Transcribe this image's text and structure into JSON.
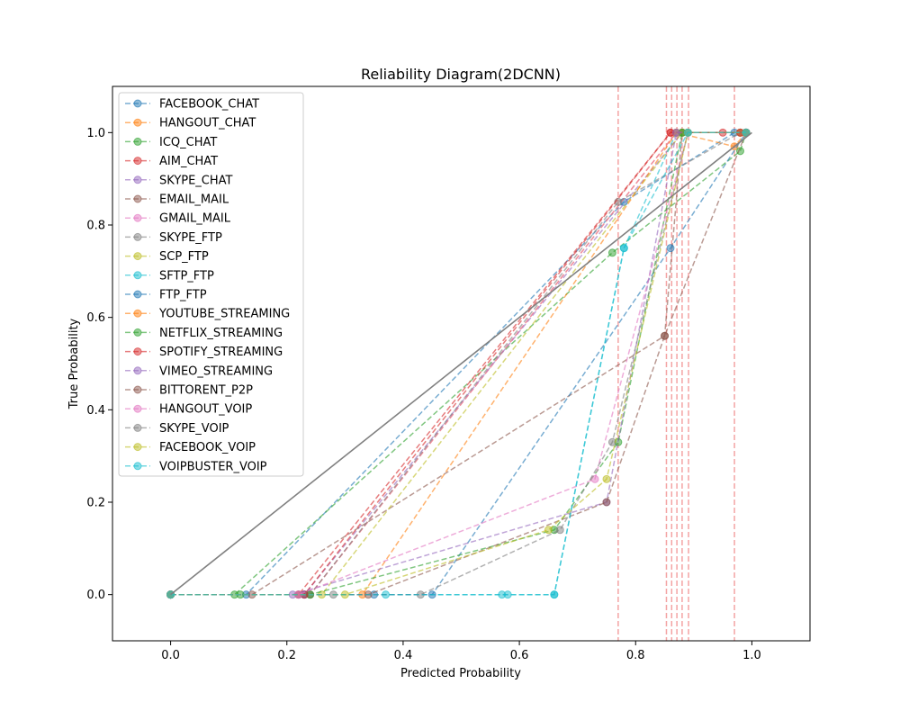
{
  "chart_data": {
    "type": "line",
    "title": "Reliability Diagram(2DCNN)",
    "xlabel": "Predicted Probability",
    "ylabel": "True Probability",
    "xlim": [
      -0.1,
      1.1
    ],
    "ylim": [
      -0.1,
      1.1
    ],
    "xticks": [
      "0.0",
      "0.2",
      "0.4",
      "0.6",
      "0.8",
      "1.0"
    ],
    "yticks": [
      "0.0",
      "0.2",
      "0.4",
      "0.6",
      "0.8",
      "1.0"
    ],
    "grid": false,
    "legend_position": "upper-left",
    "reference_line": {
      "x": [
        0,
        1
      ],
      "y": [
        0,
        1
      ],
      "color": "#808080"
    },
    "threshold_lines": {
      "color": "#f4a3a3",
      "x": [
        0.77,
        0.853,
        0.862,
        0.871,
        0.88,
        0.891,
        0.97
      ]
    },
    "series": [
      {
        "name": "FACEBOOK_CHAT",
        "color": "#1f77b4",
        "points": [
          [
            0.0,
            0.0
          ],
          [
            0.13,
            0.0
          ],
          [
            0.78,
            0.85
          ],
          [
            0.97,
            1.0
          ],
          [
            0.99,
            1.0
          ]
        ]
      },
      {
        "name": "HANGOUT_CHAT",
        "color": "#ff7f0e",
        "points": [
          [
            0.0,
            0.0
          ],
          [
            0.24,
            0.0
          ],
          [
            0.87,
            1.0
          ],
          [
            0.97,
            0.97
          ],
          [
            0.99,
            1.0
          ]
        ]
      },
      {
        "name": "ICQ_CHAT",
        "color": "#2ca02c",
        "points": [
          [
            0.0,
            0.0
          ],
          [
            0.11,
            0.0
          ],
          [
            0.76,
            0.74
          ],
          [
            0.98,
            0.96
          ],
          [
            0.99,
            1.0
          ]
        ]
      },
      {
        "name": "AIM_CHAT",
        "color": "#d62728",
        "points": [
          [
            0.0,
            0.0
          ],
          [
            0.22,
            0.0
          ],
          [
            0.86,
            1.0
          ],
          [
            0.95,
            1.0
          ],
          [
            0.99,
            1.0
          ]
        ]
      },
      {
        "name": "SKYPE_CHAT",
        "color": "#9467bd",
        "points": [
          [
            0.0,
            0.0
          ],
          [
            0.23,
            0.0
          ],
          [
            0.88,
            1.0
          ],
          [
            0.98,
            1.0
          ],
          [
            0.99,
            1.0
          ]
        ]
      },
      {
        "name": "EMAIL_MAIL",
        "color": "#8c564b",
        "points": [
          [
            0.0,
            0.0
          ],
          [
            0.14,
            0.0
          ],
          [
            0.85,
            0.56
          ],
          [
            0.88,
            1.0
          ],
          [
            0.99,
            1.0
          ]
        ]
      },
      {
        "name": "GMAIL_MAIL",
        "color": "#e377c2",
        "points": [
          [
            0.0,
            0.0
          ],
          [
            0.24,
            0.0
          ],
          [
            0.87,
            1.0
          ],
          [
            0.98,
            1.0
          ],
          [
            0.99,
            1.0
          ]
        ]
      },
      {
        "name": "SKYPE_FTP",
        "color": "#7f7f7f",
        "points": [
          [
            0.0,
            0.0
          ],
          [
            0.24,
            0.0
          ],
          [
            0.77,
            0.85
          ],
          [
            0.98,
            1.0
          ],
          [
            0.99,
            1.0
          ]
        ]
      },
      {
        "name": "SCP_FTP",
        "color": "#bcbd22",
        "points": [
          [
            0.0,
            0.0
          ],
          [
            0.26,
            0.0
          ],
          [
            0.88,
            1.0
          ],
          [
            0.98,
            1.0
          ],
          [
            0.99,
            1.0
          ]
        ]
      },
      {
        "name": "SFTP_FTP",
        "color": "#17becf",
        "points": [
          [
            0.0,
            0.0
          ],
          [
            0.37,
            0.0
          ],
          [
            0.57,
            0.0
          ],
          [
            0.66,
            0.0
          ],
          [
            0.78,
            0.75
          ],
          [
            0.87,
            1.0
          ],
          [
            0.99,
            1.0
          ]
        ]
      },
      {
        "name": "FTP_FTP",
        "color": "#1f77b4",
        "points": [
          [
            0.0,
            0.0
          ],
          [
            0.23,
            0.0
          ],
          [
            0.35,
            0.0
          ],
          [
            0.45,
            0.0
          ],
          [
            0.86,
            0.75
          ],
          [
            0.99,
            1.0
          ]
        ]
      },
      {
        "name": "YOUTUBE_STREAMING",
        "color": "#ff7f0e",
        "points": [
          [
            0.0,
            0.0
          ],
          [
            0.33,
            0.0
          ],
          [
            0.87,
            1.0
          ],
          [
            0.99,
            1.0
          ]
        ]
      },
      {
        "name": "NETFLIX_STREAMING",
        "color": "#2ca02c",
        "points": [
          [
            0.0,
            0.0
          ],
          [
            0.12,
            0.0
          ],
          [
            0.24,
            0.0
          ],
          [
            0.66,
            0.14
          ],
          [
            0.77,
            0.33
          ],
          [
            0.88,
            1.0
          ],
          [
            0.99,
            1.0
          ]
        ]
      },
      {
        "name": "SPOTIFY_STREAMING",
        "color": "#d62728",
        "points": [
          [
            0.0,
            0.0
          ],
          [
            0.23,
            0.0
          ],
          [
            0.86,
            1.0
          ],
          [
            0.98,
            1.0
          ],
          [
            0.99,
            1.0
          ]
        ]
      },
      {
        "name": "VIMEO_STREAMING",
        "color": "#9467bd",
        "points": [
          [
            0.0,
            0.0
          ],
          [
            0.21,
            0.0
          ],
          [
            0.75,
            0.2
          ],
          [
            0.87,
            1.0
          ],
          [
            0.99,
            1.0
          ]
        ]
      },
      {
        "name": "BITTORENT_P2P",
        "color": "#8c564b",
        "points": [
          [
            0.0,
            0.0
          ],
          [
            0.22,
            0.0
          ],
          [
            0.34,
            0.0
          ],
          [
            0.75,
            0.2
          ],
          [
            0.85,
            0.56
          ],
          [
            0.99,
            1.0
          ]
        ]
      },
      {
        "name": "HANGOUT_VOIP",
        "color": "#e377c2",
        "points": [
          [
            0.0,
            0.0
          ],
          [
            0.22,
            0.0
          ],
          [
            0.73,
            0.25
          ],
          [
            0.89,
            1.0
          ],
          [
            0.99,
            1.0
          ]
        ]
      },
      {
        "name": "SKYPE_VOIP",
        "color": "#7f7f7f",
        "points": [
          [
            0.0,
            0.0
          ],
          [
            0.28,
            0.0
          ],
          [
            0.43,
            0.0
          ],
          [
            0.67,
            0.14
          ],
          [
            0.76,
            0.33
          ],
          [
            0.89,
            1.0
          ],
          [
            0.99,
            1.0
          ]
        ]
      },
      {
        "name": "FACEBOOK_VOIP",
        "color": "#bcbd22",
        "points": [
          [
            0.0,
            0.0
          ],
          [
            0.3,
            0.0
          ],
          [
            0.65,
            0.14
          ],
          [
            0.75,
            0.25
          ],
          [
            0.89,
            1.0
          ],
          [
            0.99,
            1.0
          ]
        ]
      },
      {
        "name": "VOIPBUSTER_VOIP",
        "color": "#17becf",
        "points": [
          [
            0.0,
            0.0
          ],
          [
            0.58,
            0.0
          ],
          [
            0.66,
            0.0
          ],
          [
            0.78,
            0.75
          ],
          [
            0.89,
            1.0
          ],
          [
            0.99,
            1.0
          ]
        ]
      }
    ]
  }
}
